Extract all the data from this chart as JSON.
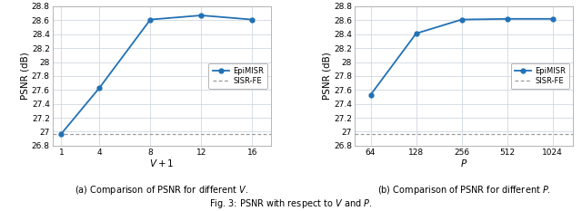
{
  "plot_a": {
    "x": [
      1,
      4,
      8,
      12,
      16
    ],
    "y_epimisr": [
      26.97,
      27.63,
      28.61,
      28.67,
      28.61
    ],
    "y_sisrfe": 26.97,
    "xlabel": "$V+1$",
    "ylabel": "PSNR (dB)",
    "ylim": [
      26.8,
      28.8
    ],
    "yticks": [
      26.8,
      27.0,
      27.2,
      27.4,
      27.6,
      27.8,
      28.0,
      28.2,
      28.4,
      28.6,
      28.8
    ],
    "xticks": [
      1,
      4,
      8,
      12,
      16
    ],
    "xticklabels": [
      "1",
      "4",
      "8",
      "12",
      "16"
    ],
    "xlim": [
      0.3,
      17.5
    ],
    "caption": "(a) Comparison of PSNR for different $V$."
  },
  "plot_b": {
    "x": [
      64,
      128,
      256,
      512,
      1024
    ],
    "y_epimisr": [
      27.53,
      28.41,
      28.61,
      28.62,
      28.62
    ],
    "y_sisrfe": 26.97,
    "xlabel": "$P$",
    "ylabel": "PSNR (dB)",
    "ylim": [
      26.8,
      28.8
    ],
    "yticks": [
      26.8,
      27.0,
      27.2,
      27.4,
      27.6,
      27.8,
      28.0,
      28.2,
      28.4,
      28.6,
      28.8
    ],
    "xticks": [
      64,
      128,
      256,
      512,
      1024
    ],
    "xticklabels": [
      "64",
      "128",
      "256",
      "512",
      "1024"
    ],
    "caption": "(b) Comparison of PSNR for different $P$."
  },
  "legend_epimisr": "EpiMISR",
  "legend_sisrfe": "SISR-FE",
  "line_color": "#2171b5",
  "marker": "o",
  "marker_size": 3.5,
  "marker_face": "white",
  "line_width": 1.3,
  "dotted_color": "#999999",
  "fig_caption": "Fig. 3: PSNR with respect to $V$ and $P$.",
  "plot_bg": "#ffffff",
  "grid_color": "#d0d8e0",
  "spine_color": "#aaaaaa",
  "tick_fontsize": 6.5,
  "label_fontsize": 7.5,
  "legend_fontsize": 6.0,
  "caption_fontsize": 7.0
}
